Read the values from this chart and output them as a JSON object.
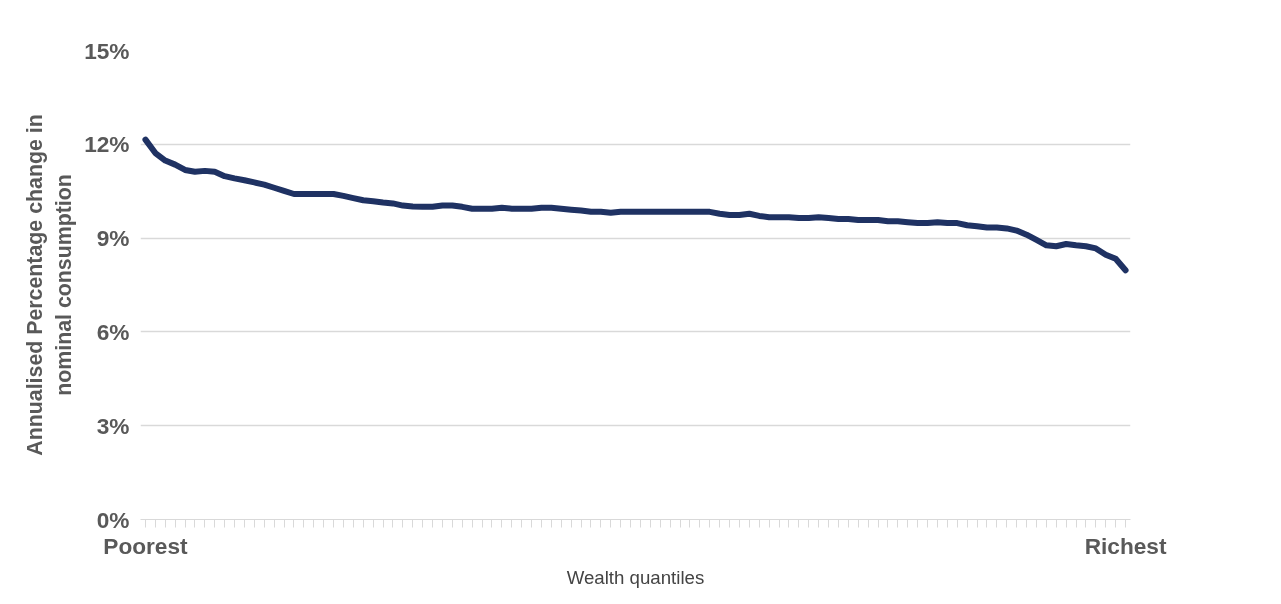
{
  "chart_data": {
    "type": "line",
    "xlabel": "Wealth quantiles",
    "ylabel": "Annualised Percentage change in\nnominal consumption",
    "categories": [
      "Poorest",
      null,
      null,
      null,
      null,
      null,
      null,
      null,
      null,
      null,
      null,
      null,
      null,
      null,
      null,
      null,
      null,
      null,
      null,
      null,
      null,
      null,
      null,
      null,
      null,
      null,
      null,
      null,
      null,
      null,
      null,
      null,
      null,
      null,
      null,
      null,
      null,
      null,
      null,
      null,
      null,
      null,
      null,
      null,
      null,
      null,
      null,
      null,
      null,
      null,
      null,
      null,
      null,
      null,
      null,
      null,
      null,
      null,
      null,
      null,
      null,
      null,
      null,
      null,
      null,
      null,
      null,
      null,
      null,
      null,
      null,
      null,
      null,
      null,
      null,
      null,
      null,
      null,
      null,
      null,
      null,
      null,
      null,
      null,
      null,
      null,
      null,
      null,
      null,
      null,
      null,
      null,
      null,
      null,
      null,
      null,
      null,
      null,
      null,
      "Richest"
    ],
    "series": [
      {
        "color": "#1f3263",
        "values": [
          12.15,
          11.72,
          11.48,
          11.35,
          11.18,
          11.12,
          11.15,
          11.12,
          10.98,
          10.91,
          10.85,
          10.78,
          10.71,
          10.61,
          10.51,
          10.41,
          10.41,
          10.41,
          10.41,
          10.41,
          10.35,
          10.28,
          10.21,
          10.18,
          10.14,
          10.11,
          10.04,
          10.01,
          10.0,
          10.0,
          10.04,
          10.04,
          10.0,
          9.94,
          9.94,
          9.94,
          9.97,
          9.94,
          9.94,
          9.94,
          9.97,
          9.97,
          9.94,
          9.91,
          9.88,
          9.84,
          9.84,
          9.81,
          9.84,
          9.84,
          9.84,
          9.84,
          9.84,
          9.84,
          9.84,
          9.84,
          9.84,
          9.84,
          9.78,
          9.74,
          9.74,
          9.78,
          9.71,
          9.67,
          9.67,
          9.67,
          9.64,
          9.64,
          9.67,
          9.64,
          9.61,
          9.61,
          9.58,
          9.58,
          9.58,
          9.54,
          9.54,
          9.51,
          9.48,
          9.48,
          9.51,
          9.48,
          9.48,
          9.41,
          9.38,
          9.34,
          9.34,
          9.31,
          9.24,
          9.11,
          8.94,
          8.77,
          8.74,
          8.81,
          8.77,
          8.74,
          8.67,
          8.47,
          8.34,
          7.97
        ]
      }
    ],
    "ylim": [
      0,
      15
    ],
    "yticks": [
      {
        "value": 0,
        "label": "0%"
      },
      {
        "value": 3,
        "label": "3%"
      },
      {
        "value": 6,
        "label": "6%"
      },
      {
        "value": 9,
        "label": "9%"
      },
      {
        "value": 12,
        "label": "12%"
      },
      {
        "value": 15,
        "label": "15%"
      }
    ],
    "grid": "y",
    "marker": "none",
    "line_style": "solid"
  }
}
